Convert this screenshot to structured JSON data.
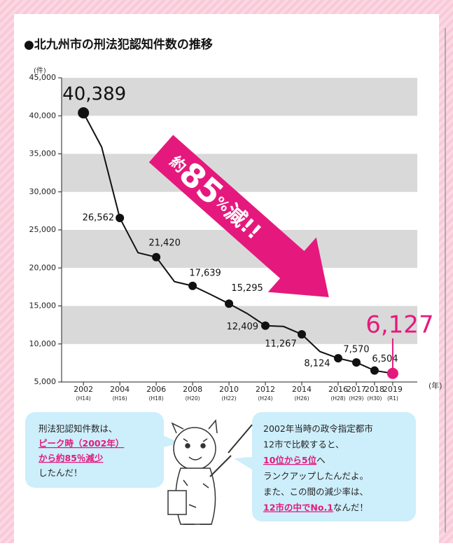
{
  "chart_data": {
    "type": "line",
    "title": "●北九州市の刑法犯認知件数の推移",
    "y_unit": "(件)",
    "x_unit": "(年)",
    "x": [
      2002,
      2003,
      2004,
      2005,
      2006,
      2007,
      2008,
      2009,
      2010,
      2011,
      2012,
      2013,
      2014,
      2015,
      2016,
      2017,
      2018,
      2019
    ],
    "values": [
      40389,
      35900,
      26562,
      22000,
      21420,
      18200,
      17639,
      16500,
      15295,
      14000,
      12409,
      12300,
      11267,
      9000,
      8124,
      7570,
      6504,
      6127
    ],
    "value_labels": [
      "40,389",
      null,
      "26,562",
      null,
      "21,420",
      null,
      "17,639",
      null,
      "15,295",
      null,
      "12,409",
      null,
      "11,267",
      null,
      "8,124",
      "7,570",
      "6,504",
      "6,127"
    ],
    "color": "#111111",
    "highlight_color": "#e5197d",
    "xlim": [
      2000.8,
      2020.35
    ],
    "xticks": [
      {
        "value": 2002,
        "label": "2002",
        "sublabel": "(H14)"
      },
      {
        "value": 2004,
        "label": "2004",
        "sublabel": "(H16)"
      },
      {
        "value": 2006,
        "label": "2006",
        "sublabel": "(H18)"
      },
      {
        "value": 2008,
        "label": "2008",
        "sublabel": "(H20)"
      },
      {
        "value": 2010,
        "label": "2010",
        "sublabel": "(H22)"
      },
      {
        "value": 2012,
        "label": "2012",
        "sublabel": "(H24)"
      },
      {
        "value": 2014,
        "label": "2014",
        "sublabel": "(H26)"
      },
      {
        "value": 2016,
        "label": "2016",
        "sublabel": "(H28)"
      },
      {
        "value": 2017,
        "label": "2017",
        "sublabel": "(H29)"
      },
      {
        "value": 2018,
        "label": "2018",
        "sublabel": "(H30)"
      },
      {
        "value": 2019,
        "label": "2019",
        "sublabel": "(R1)"
      }
    ],
    "ylim": [
      5000,
      45000
    ],
    "yticks": [
      {
        "value": 5000,
        "label": "5,000"
      },
      {
        "value": 10000,
        "label": "10,000"
      },
      {
        "value": 15000,
        "label": "15,000"
      },
      {
        "value": 20000,
        "label": "20,000"
      },
      {
        "value": 25000,
        "label": "25,000"
      },
      {
        "value": 30000,
        "label": "30,000"
      },
      {
        "value": 35000,
        "label": "35,000"
      },
      {
        "value": 40000,
        "label": "40,000"
      },
      {
        "value": 45000,
        "label": "45,000"
      }
    ],
    "grid": "bands",
    "band_color": "#d9d9d9",
    "annotation": [
      "約",
      "85",
      "%",
      "減!!"
    ]
  },
  "speech_bubbles": [
    {
      "lines": [
        [
          {
            "text": "刑法犯認知件数は、",
            "em": false
          }
        ],
        [
          {
            "text": "ピーク時（2002年）",
            "em": true
          }
        ],
        [
          {
            "text": "から約85％減少",
            "em": true
          }
        ],
        [
          {
            "text": "したんだ！",
            "em": false
          }
        ]
      ]
    },
    {
      "lines": [
        [
          {
            "text": "2002年当時の政令指定都市",
            "em": false
          }
        ],
        [
          {
            "text": "12市で比較すると、",
            "em": false
          }
        ],
        [
          {
            "text": "10位から5位",
            "em": true
          },
          {
            "text": "へ",
            "em": false
          }
        ],
        [
          {
            "text": "ランクアップしたんだよ。",
            "em": false
          }
        ],
        [
          {
            "text": "また、この間の減少率は、",
            "em": false
          }
        ],
        [
          {
            "text": "12市の中でNo.1",
            "em": true
          },
          {
            "text": "なんだ！",
            "em": false
          }
        ]
      ]
    }
  ]
}
